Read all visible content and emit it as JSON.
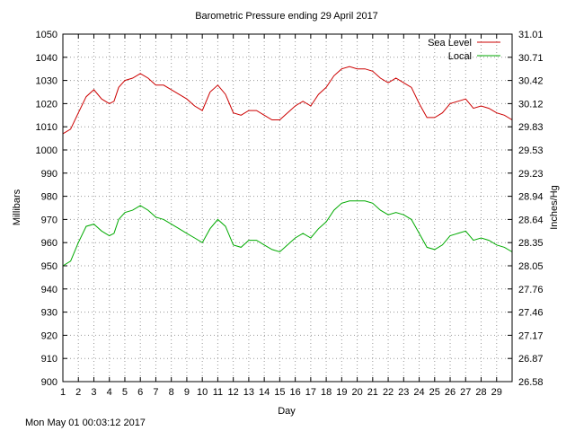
{
  "chart_data": {
    "type": "line",
    "title": "Barometric Pressure ending 29 April 2017",
    "xlabel": "Day",
    "ylabel": "Millibars",
    "y2label": "Inches/Hg",
    "xlim": [
      1,
      30
    ],
    "ylim": [
      900,
      1050
    ],
    "x_ticks": [
      "1",
      "2",
      "3",
      "4",
      "5",
      "6",
      "7",
      "8",
      "9",
      "10",
      "11",
      "12",
      "13",
      "14",
      "15",
      "16",
      "17",
      "18",
      "19",
      "20",
      "21",
      "22",
      "23",
      "24",
      "25",
      "26",
      "27",
      "28",
      "29"
    ],
    "y_ticks": [
      "900",
      "910",
      "920",
      "930",
      "940",
      "950",
      "960",
      "970",
      "980",
      "990",
      "1000",
      "1010",
      "1020",
      "1030",
      "1040",
      "1050"
    ],
    "y2_ticks": [
      "26.58",
      "26.87",
      "27.17",
      "27.46",
      "27.76",
      "28.05",
      "28.35",
      "28.64",
      "28.94",
      "29.23",
      "29.53",
      "29.83",
      "30.12",
      "30.42",
      "30.71",
      "31.01"
    ],
    "grid": true,
    "legend_position": "top-right",
    "series": [
      {
        "name": "Sea Level",
        "color": "#cc0000",
        "x": [
          1.0,
          1.5,
          2.0,
          2.5,
          3.0,
          3.5,
          4.0,
          4.3,
          4.6,
          5.0,
          5.5,
          6.0,
          6.5,
          7.0,
          7.5,
          8.0,
          8.5,
          9.0,
          9.5,
          10.0,
          10.5,
          11.0,
          11.5,
          12.0,
          12.5,
          13.0,
          13.5,
          14.0,
          14.5,
          15.0,
          15.5,
          16.0,
          16.5,
          17.0,
          17.5,
          18.0,
          18.5,
          19.0,
          19.5,
          20.0,
          20.5,
          21.0,
          21.5,
          22.0,
          22.5,
          23.0,
          23.5,
          24.0,
          24.5,
          25.0,
          25.5,
          26.0,
          26.5,
          27.0,
          27.5,
          28.0,
          28.5,
          29.0,
          29.5,
          30.0
        ],
        "values": [
          1007,
          1009,
          1016,
          1023,
          1026,
          1022,
          1020,
          1021,
          1027,
          1030,
          1031,
          1033,
          1031,
          1028,
          1028,
          1026,
          1024,
          1022,
          1019,
          1017,
          1025,
          1028,
          1024,
          1016,
          1015,
          1017,
          1017,
          1015,
          1013,
          1013,
          1016,
          1019,
          1021,
          1019,
          1024,
          1027,
          1032,
          1035,
          1036,
          1035,
          1035,
          1034,
          1031,
          1029,
          1031,
          1029,
          1027,
          1020,
          1014,
          1014,
          1016,
          1020,
          1021,
          1022,
          1018,
          1019,
          1018,
          1016,
          1015,
          1013
        ]
      },
      {
        "name": "Local",
        "color": "#00aa00",
        "x": [
          1.0,
          1.5,
          2.0,
          2.5,
          3.0,
          3.5,
          4.0,
          4.3,
          4.6,
          5.0,
          5.5,
          6.0,
          6.5,
          7.0,
          7.5,
          8.0,
          8.5,
          9.0,
          9.5,
          10.0,
          10.5,
          11.0,
          11.5,
          12.0,
          12.5,
          13.0,
          13.5,
          14.0,
          14.5,
          15.0,
          15.5,
          16.0,
          16.5,
          17.0,
          17.5,
          18.0,
          18.5,
          19.0,
          19.5,
          20.0,
          20.5,
          21.0,
          21.5,
          22.0,
          22.5,
          23.0,
          23.5,
          24.0,
          24.5,
          25.0,
          25.5,
          26.0,
          26.5,
          27.0,
          27.5,
          28.0,
          28.5,
          29.0,
          29.5,
          30.0
        ],
        "values": [
          950,
          952,
          960,
          967,
          968,
          965,
          963,
          964,
          970,
          973,
          974,
          976,
          974,
          971,
          970,
          968,
          966,
          964,
          962,
          960,
          966,
          970,
          967,
          959,
          958,
          961,
          961,
          959,
          957,
          956,
          959,
          962,
          964,
          962,
          966,
          969,
          974,
          977,
          978,
          978,
          978,
          977,
          974,
          972,
          973,
          972,
          970,
          964,
          958,
          957,
          959,
          963,
          964,
          965,
          961,
          962,
          961,
          959,
          958,
          956
        ]
      }
    ]
  },
  "footer": {
    "timestamp": "Mon May 01 00:03:12 2017"
  }
}
